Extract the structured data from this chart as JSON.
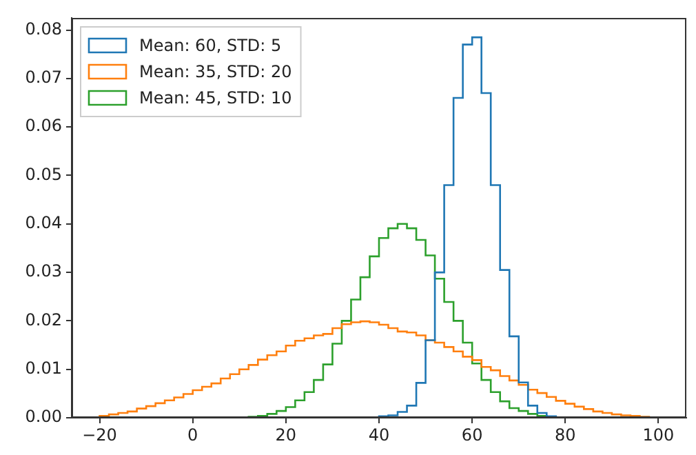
{
  "chart_data": {
    "type": "histogram",
    "bins": [
      -20,
      -18,
      -16,
      -14,
      -12,
      -10,
      -8,
      -6,
      -4,
      -2,
      0,
      2,
      4,
      6,
      8,
      10,
      12,
      14,
      16,
      18,
      20,
      22,
      24,
      26,
      28,
      30,
      32,
      34,
      36,
      38,
      40,
      42,
      44,
      46,
      48,
      50,
      52,
      54,
      56,
      58,
      60,
      62,
      64,
      66,
      68,
      70,
      72,
      74,
      76,
      78,
      80,
      82,
      84,
      86,
      88,
      90,
      92,
      94,
      96,
      98,
      100
    ],
    "series": [
      {
        "name": "Mean: 60, STD: 5",
        "color": "#1f77b4",
        "values": [
          0,
          0,
          0,
          0,
          0,
          0,
          0,
          0,
          0,
          0,
          0,
          0,
          0,
          0,
          0,
          0,
          0,
          0,
          0,
          0,
          0,
          0,
          0,
          0,
          0,
          0,
          0,
          0,
          0,
          0,
          0.0003,
          0.0005,
          0.0012,
          0.0025,
          0.0072,
          0.016,
          0.03,
          0.048,
          0.066,
          0.077,
          0.0785,
          0.067,
          0.048,
          0.0305,
          0.0168,
          0.0073,
          0.0025,
          0.001,
          0.0003,
          0.0001,
          0,
          0,
          0,
          0,
          0,
          0,
          0,
          0,
          0,
          0
        ]
      },
      {
        "name": "Mean: 35, STD: 20",
        "color": "#ff7f0e",
        "values": [
          0.0004,
          0.0007,
          0.001,
          0.0013,
          0.0019,
          0.0024,
          0.003,
          0.0036,
          0.0042,
          0.0049,
          0.0057,
          0.0064,
          0.0071,
          0.0081,
          0.009,
          0.01,
          0.0109,
          0.012,
          0.0129,
          0.0137,
          0.0149,
          0.0159,
          0.0164,
          0.017,
          0.0173,
          0.0185,
          0.0193,
          0.0197,
          0.0199,
          0.0197,
          0.0192,
          0.0185,
          0.0178,
          0.0176,
          0.017,
          0.016,
          0.0155,
          0.0146,
          0.0137,
          0.0126,
          0.0119,
          0.0105,
          0.0098,
          0.0086,
          0.0077,
          0.0068,
          0.0058,
          0.0051,
          0.0043,
          0.0035,
          0.0029,
          0.0023,
          0.0018,
          0.0013,
          0.001,
          0.0007,
          0.0005,
          0.0004,
          0.0002,
          0.0001
        ]
      },
      {
        "name": "Mean: 45, STD: 10",
        "color": "#2ca02c",
        "values": [
          0,
          0,
          0,
          0,
          0,
          0,
          0,
          0,
          0,
          0,
          0,
          0,
          0,
          0,
          0,
          0.0001,
          0.0002,
          0.0004,
          0.0008,
          0.0014,
          0.0022,
          0.0036,
          0.0053,
          0.0078,
          0.011,
          0.0153,
          0.02,
          0.0244,
          0.029,
          0.0333,
          0.0371,
          0.0391,
          0.04,
          0.0391,
          0.0367,
          0.0335,
          0.0287,
          0.0239,
          0.02,
          0.0155,
          0.0112,
          0.0078,
          0.0053,
          0.0034,
          0.002,
          0.0014,
          0.0008,
          0.0004,
          0.0002,
          0.0001,
          0,
          0,
          0,
          0,
          0,
          0,
          0,
          0,
          0,
          0
        ]
      }
    ],
    "xlim": [
      -26,
      106
    ],
    "xticks": [
      {
        "value": -20,
        "label": "−20"
      },
      0,
      20,
      40,
      60,
      80,
      100
    ],
    "ylim": [
      0,
      0.0825
    ],
    "yticks": [
      {
        "value": 0,
        "label": "0.00"
      },
      {
        "value": 0.01,
        "label": "0.01"
      },
      {
        "value": 0.02,
        "label": "0.02"
      },
      {
        "value": 0.03,
        "label": "0.03"
      },
      {
        "value": 0.04,
        "label": "0.04"
      },
      {
        "value": 0.05,
        "label": "0.05"
      },
      {
        "value": 0.06,
        "label": "0.06"
      },
      {
        "value": 0.07,
        "label": "0.07"
      },
      {
        "value": 0.08,
        "label": "0.08"
      }
    ],
    "grid": false,
    "legend": "top left"
  }
}
